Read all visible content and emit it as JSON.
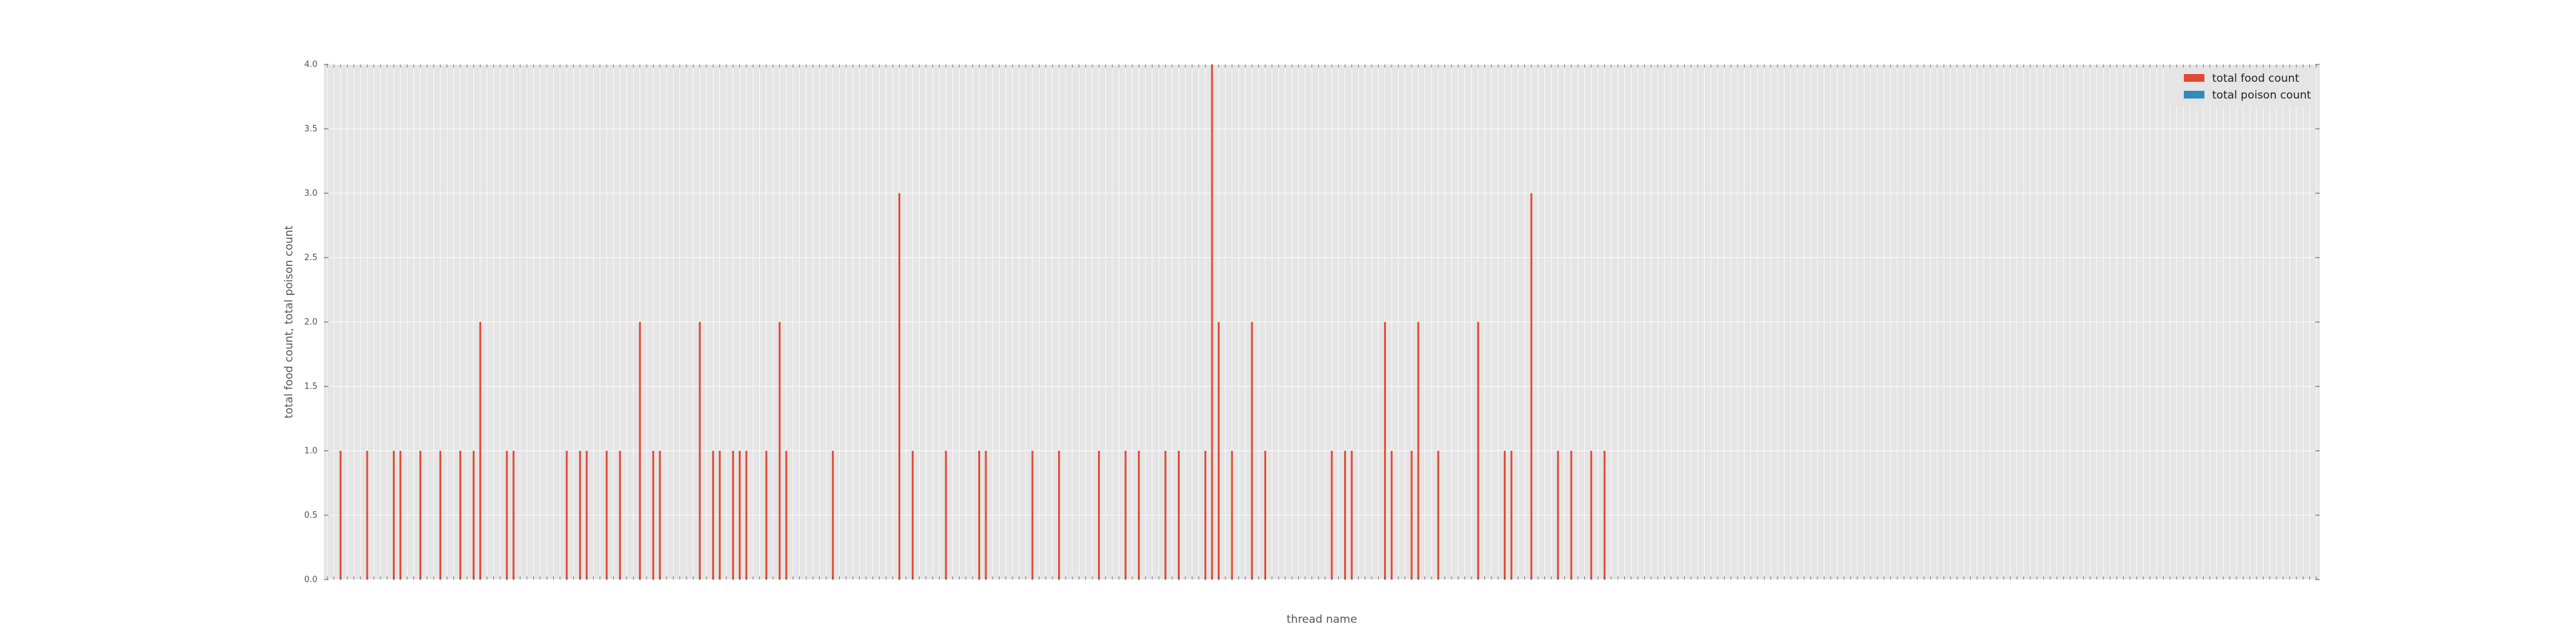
{
  "chart_data": {
    "type": "bar",
    "xlabel": "thread name",
    "ylabel": "total food count, total poison count",
    "ylim": [
      0,
      4
    ],
    "yticks": [
      "0.0",
      "0.5",
      "1.0",
      "1.5",
      "2.0",
      "2.5",
      "3.0",
      "3.5",
      "4.0"
    ],
    "grid": true,
    "legend_position": "top-right",
    "x_tick_labels_legible": false,
    "n_categories": 300,
    "series": [
      {
        "name": "total food count",
        "color": "#e24a33",
        "values": [
          0,
          0,
          1,
          0,
          0,
          0,
          1,
          0,
          0,
          0,
          1,
          1,
          0,
          0,
          1,
          0,
          0,
          1,
          0,
          0,
          1,
          0,
          1,
          2,
          0,
          0,
          0,
          1,
          1,
          0,
          0,
          0,
          0,
          0,
          0,
          0,
          1,
          0,
          1,
          1,
          0,
          0,
          1,
          0,
          1,
          0,
          0,
          2,
          0,
          1,
          1,
          0,
          0,
          0,
          0,
          0,
          2,
          0,
          1,
          1,
          0,
          1,
          1,
          1,
          0,
          0,
          1,
          0,
          2,
          1,
          0,
          0,
          0,
          0,
          0,
          0,
          1,
          0,
          0,
          0,
          0,
          0,
          0,
          0,
          0,
          0,
          3,
          0,
          1,
          0,
          0,
          0,
          0,
          1,
          0,
          0,
          0,
          0,
          1,
          1,
          0,
          0,
          0,
          0,
          0,
          0,
          1,
          0,
          0,
          0,
          1,
          0,
          0,
          0,
          0,
          0,
          1,
          0,
          0,
          0,
          1,
          0,
          1,
          0,
          0,
          0,
          1,
          0,
          1,
          0,
          0,
          0,
          1,
          4,
          2,
          0,
          1,
          0,
          0,
          2,
          0,
          1,
          0,
          0,
          0,
          0,
          0,
          0,
          0,
          0,
          0,
          1,
          0,
          1,
          1,
          0,
          0,
          0,
          0,
          2,
          1,
          0,
          0,
          1,
          2,
          0,
          0,
          1,
          0,
          0,
          0,
          0,
          0,
          2,
          0,
          0,
          0,
          1,
          1,
          0,
          0,
          3,
          0,
          0,
          0,
          1,
          0,
          1,
          0,
          0,
          1,
          0,
          1,
          0,
          0,
          0,
          0,
          0,
          0,
          0,
          0,
          0,
          0,
          0,
          0,
          0,
          0,
          0,
          0,
          0,
          0,
          0,
          0,
          0,
          0,
          0,
          0,
          0,
          0,
          0,
          0,
          0,
          0,
          0,
          0,
          0,
          0,
          0,
          0,
          0,
          0,
          0,
          0,
          0,
          0,
          0,
          0,
          0,
          0,
          0,
          0,
          0,
          0,
          0,
          0,
          0,
          0,
          0,
          0,
          0,
          0,
          0,
          0,
          0,
          0,
          0,
          0,
          0,
          0,
          0,
          0,
          0,
          0,
          0,
          0,
          0,
          0,
          0,
          0,
          0,
          0,
          0,
          0,
          0,
          0,
          0,
          0,
          0,
          0,
          0,
          0,
          0,
          0,
          0,
          0,
          0,
          0,
          0,
          0,
          0,
          0,
          0,
          0,
          0,
          0,
          0,
          0,
          0,
          0,
          0,
          0,
          0,
          0,
          0,
          0,
          0,
          0,
          0,
          0,
          0,
          0,
          0
        ]
      },
      {
        "name": "total poison count",
        "color": "#348abd",
        "values": []
      }
    ]
  }
}
